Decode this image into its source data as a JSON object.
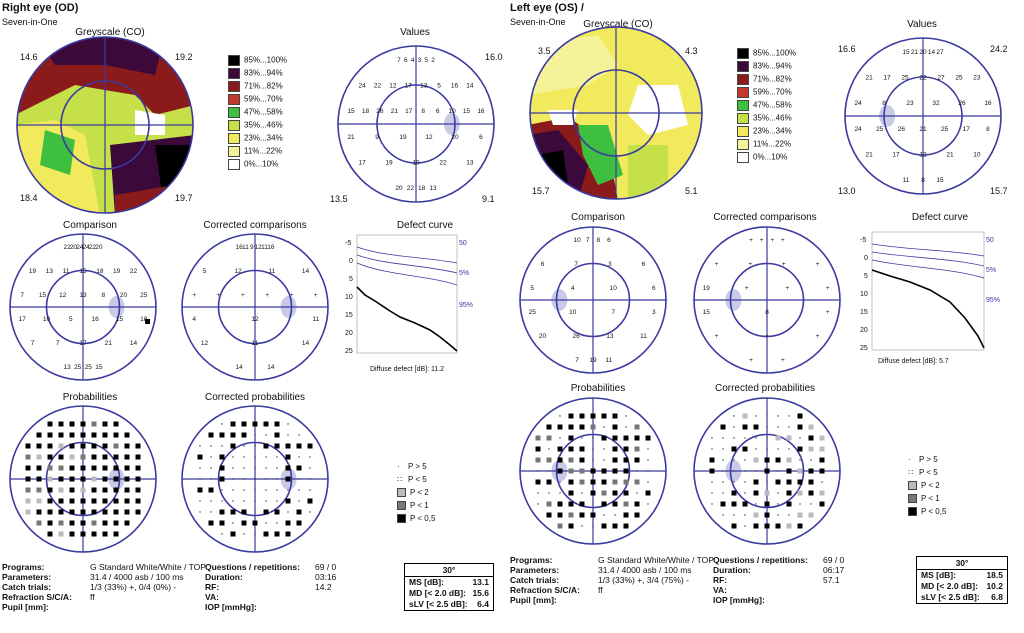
{
  "od": {
    "title": "Right eye (OD)",
    "subtitle": "Seven-in-One",
    "greyscale_title": "Greyscale (CO)",
    "greyscale_corners": [
      "14.6",
      "19.2",
      "18.4",
      "19.7"
    ],
    "values_title": "Values",
    "values_corners": [
      "",
      "16.0",
      "13.5",
      "9.1"
    ],
    "comparison_title": "Comparison",
    "corrected_comparisons_title": "Corrected comparisons",
    "defect_curve_title": "Defect curve",
    "diffuse_defect": "Diffuse defect [dB]: 11.2",
    "probabilities_title": "Probabilities",
    "corrected_probabilities_title": "Corrected probabilities",
    "params": {
      "programs_label": "Programs:",
      "programs_value": "G Standard  White/White / TOP",
      "parameters_label": "Parameters:",
      "parameters_value": "31.4 / 4000 asb / 100 ms",
      "catch_label": "Catch trials:",
      "catch_value": "1/3 (33%) +, 0/4 (0%) -",
      "refraction_label": "Refraction S/C/A:",
      "refraction_value": "ff",
      "pupil_label": "Pupil [mm]:",
      "pupil_value": "",
      "questions_label": "Questions / repetitions:",
      "questions_value": "69 / 0",
      "duration_label": "Duration:",
      "duration_value": "03:16",
      "rf_label": "RF:",
      "rf_value": "14.2",
      "va_label": "VA:",
      "va_value": "",
      "iop_label": "IOP [mmHg]:",
      "iop_value": ""
    },
    "summary": {
      "header": "30°",
      "ms_label": "MS [dB]:",
      "ms_value": "13.1",
      "md_label": "MD [< 2.0 dB]:",
      "md_value": "15.6",
      "slv_label": "sLV [< 2.5 dB]:",
      "slv_value": "6.4"
    }
  },
  "os": {
    "title": "Left eye (OS) /",
    "subtitle": "Seven-in-One",
    "greyscale_title": "Greyscale (CO)",
    "greyscale_corners": [
      "3.5",
      "4.3",
      "15.7",
      "5.1"
    ],
    "values_title": "Values",
    "values_corners": [
      "16.6",
      "24.2",
      "13.0",
      "15.7"
    ],
    "comparison_title": "Comparison",
    "corrected_comparisons_title": "Corrected comparisons",
    "defect_curve_title": "Defect curve",
    "diffuse_defect": "Diffuse defect [dB]: 5.7",
    "probabilities_title": "Probabilities",
    "corrected_probabilities_title": "Corrected probabilities",
    "params": {
      "programs_label": "Programs:",
      "programs_value": "G Standard  White/White / TOP",
      "parameters_label": "Parameters:",
      "parameters_value": "31.4 / 4000 asb / 100 ms",
      "catch_label": "Catch trials:",
      "catch_value": "1/3 (33%) +, 3/4 (75%) -",
      "refraction_label": "Refraction S/C/A:",
      "refraction_value": "ff",
      "pupil_label": "Pupil [mm]:",
      "pupil_value": "",
      "questions_label": "Questions / repetitions:",
      "questions_value": "69 / 0",
      "duration_label": "Duration:",
      "duration_value": "06:17",
      "rf_label": "RF:",
      "rf_value": "57.1",
      "va_label": "VA:",
      "va_value": "",
      "iop_label": "IOP [mmHg]:",
      "iop_value": ""
    },
    "summary": {
      "header": "30°",
      "ms_label": "MS [dB]:",
      "ms_value": "18.5",
      "md_label": "MD [< 2.0 dB]:",
      "md_value": "10.2",
      "slv_label": "sLV [< 2.5 dB]:",
      "slv_value": "6.8"
    }
  },
  "greyscale_legend": [
    {
      "label": "85%...100%",
      "color": "#000000"
    },
    {
      "label": "83%...94%",
      "color": "#3b0a3b"
    },
    {
      "label": "71%...82%",
      "color": "#8b1a1a"
    },
    {
      "label": "59%...70%",
      "color": "#c43a2a"
    },
    {
      "label": "47%...58%",
      "color": "#3fbf3f"
    },
    {
      "label": "35%...46%",
      "color": "#c6e04a"
    },
    {
      "label": "23%...34%",
      "color": "#f0ea5c"
    },
    {
      "label": "11%...22%",
      "color": "#f6f29a"
    },
    {
      "label": "0%...10%",
      "color": "#ffffff"
    }
  ],
  "prob_legend": [
    {
      "label": "P > 5"
    },
    {
      "label": "P < 5"
    },
    {
      "label": "P < 2"
    },
    {
      "label": "P < 1"
    },
    {
      "label": "P < 0,5"
    }
  ],
  "defect_curve_labels": {
    "y_ticks": [
      "-5",
      "0",
      "5",
      "10",
      "15",
      "20",
      "25"
    ],
    "right": [
      "50",
      "5%",
      "95%"
    ]
  }
}
